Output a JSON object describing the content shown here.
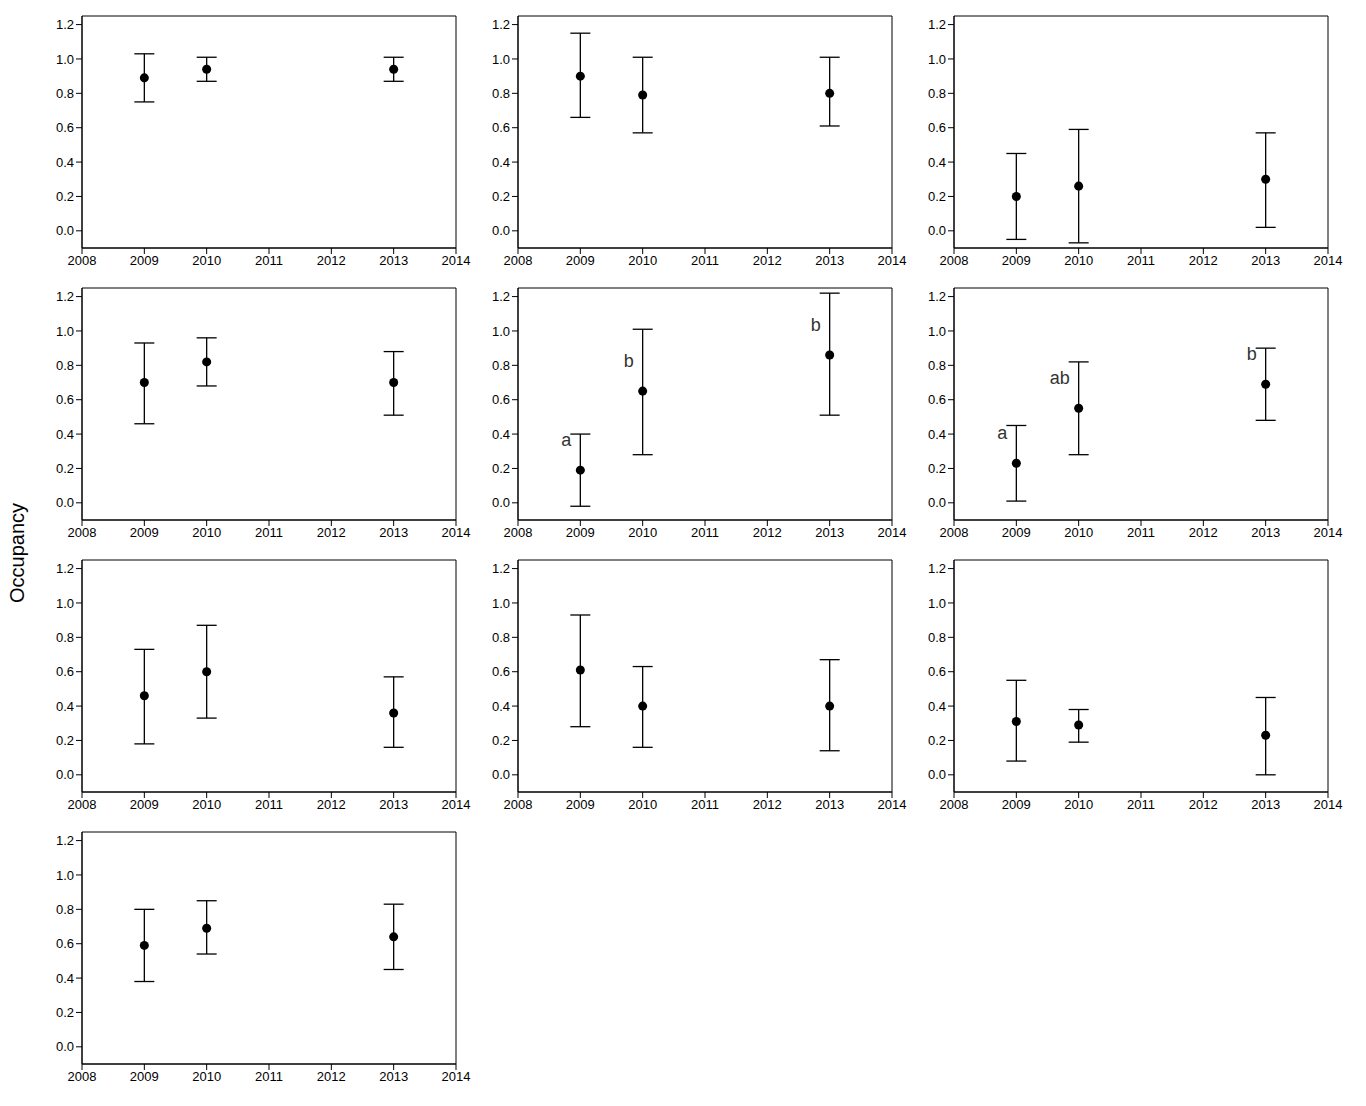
{
  "y_label": "Occupancy",
  "chart_data": [
    {
      "type": "scatter",
      "x": [
        2009,
        2010,
        2013
      ],
      "values": [
        0.89,
        0.94,
        0.94
      ],
      "ci_low": [
        0.75,
        0.87,
        0.87
      ],
      "ci_high": [
        1.03,
        1.01,
        1.01
      ],
      "xlim": [
        2008,
        2014
      ],
      "xticks": [
        2008,
        2009,
        2010,
        2011,
        2012,
        2013,
        2014
      ],
      "ylim": [
        -0.1,
        1.25
      ],
      "yticks": [
        {
          "value": 0,
          "label": "0.0"
        },
        {
          "value": 0.2,
          "label": "0.2"
        },
        {
          "value": 0.4,
          "label": "0.4"
        },
        {
          "value": 0.6,
          "label": "0.6"
        },
        {
          "value": 0.8,
          "label": "0.8"
        },
        {
          "value": 1,
          "label": "1.0"
        },
        {
          "value": 1.2,
          "label": "1.2"
        }
      ],
      "color": "#000000",
      "marker": "circle",
      "grid": false
    },
    {
      "type": "scatter",
      "x": [
        2009,
        2010,
        2013
      ],
      "values": [
        0.9,
        0.79,
        0.8
      ],
      "ci_low": [
        0.66,
        0.57,
        0.61
      ],
      "ci_high": [
        1.15,
        1.01,
        1.01
      ],
      "xlim": [
        2008,
        2014
      ],
      "xticks": [
        2008,
        2009,
        2010,
        2011,
        2012,
        2013,
        2014
      ],
      "ylim": [
        -0.1,
        1.25
      ],
      "yticks": [
        {
          "value": 0,
          "label": "0.0"
        },
        {
          "value": 0.2,
          "label": "0.2"
        },
        {
          "value": 0.4,
          "label": "0.4"
        },
        {
          "value": 0.6,
          "label": "0.6"
        },
        {
          "value": 0.8,
          "label": "0.8"
        },
        {
          "value": 1,
          "label": "1.0"
        },
        {
          "value": 1.2,
          "label": "1.2"
        }
      ],
      "color": "#000000",
      "marker": "circle",
      "grid": false
    },
    {
      "type": "scatter",
      "x": [
        2009,
        2010,
        2013
      ],
      "values": [
        0.2,
        0.26,
        0.3
      ],
      "ci_low": [
        -0.05,
        -0.07,
        0.02
      ],
      "ci_high": [
        0.45,
        0.59,
        0.57
      ],
      "xlim": [
        2008,
        2014
      ],
      "xticks": [
        2008,
        2009,
        2010,
        2011,
        2012,
        2013,
        2014
      ],
      "ylim": [
        -0.1,
        1.25
      ],
      "yticks": [
        {
          "value": 0,
          "label": "0.0"
        },
        {
          "value": 0.2,
          "label": "0.2"
        },
        {
          "value": 0.4,
          "label": "0.4"
        },
        {
          "value": 0.6,
          "label": "0.6"
        },
        {
          "value": 0.8,
          "label": "0.8"
        },
        {
          "value": 1,
          "label": "1.0"
        },
        {
          "value": 1.2,
          "label": "1.2"
        }
      ],
      "color": "#000000",
      "marker": "circle",
      "grid": false
    },
    {
      "type": "scatter",
      "x": [
        2009,
        2010,
        2013
      ],
      "values": [
        0.7,
        0.82,
        0.7
      ],
      "ci_low": [
        0.46,
        0.68,
        0.51
      ],
      "ci_high": [
        0.93,
        0.96,
        0.88
      ],
      "xlim": [
        2008,
        2014
      ],
      "xticks": [
        2008,
        2009,
        2010,
        2011,
        2012,
        2013,
        2014
      ],
      "ylim": [
        -0.1,
        1.25
      ],
      "yticks": [
        {
          "value": 0,
          "label": "0.0"
        },
        {
          "value": 0.2,
          "label": "0.2"
        },
        {
          "value": 0.4,
          "label": "0.4"
        },
        {
          "value": 0.6,
          "label": "0.6"
        },
        {
          "value": 0.8,
          "label": "0.8"
        },
        {
          "value": 1,
          "label": "1.0"
        },
        {
          "value": 1.2,
          "label": "1.2"
        }
      ],
      "color": "#000000",
      "marker": "circle",
      "grid": false
    },
    {
      "type": "scatter",
      "x": [
        2009,
        2010,
        2013
      ],
      "values": [
        0.19,
        0.65,
        0.86
      ],
      "ci_low": [
        -0.02,
        0.28,
        0.51
      ],
      "ci_high": [
        0.4,
        1.01,
        1.22
      ],
      "point_labels": [
        "a",
        "b",
        "b"
      ],
      "xlim": [
        2008,
        2014
      ],
      "xticks": [
        2008,
        2009,
        2010,
        2011,
        2012,
        2013,
        2014
      ],
      "ylim": [
        -0.1,
        1.25
      ],
      "yticks": [
        {
          "value": 0,
          "label": "0.0"
        },
        {
          "value": 0.2,
          "label": "0.2"
        },
        {
          "value": 0.4,
          "label": "0.4"
        },
        {
          "value": 0.6,
          "label": "0.6"
        },
        {
          "value": 0.8,
          "label": "0.8"
        },
        {
          "value": 1,
          "label": "1.0"
        },
        {
          "value": 1.2,
          "label": "1.2"
        }
      ],
      "color": "#000000",
      "marker": "circle",
      "grid": false
    },
    {
      "type": "scatter",
      "x": [
        2009,
        2010,
        2013
      ],
      "values": [
        0.23,
        0.55,
        0.69
      ],
      "ci_low": [
        0.01,
        0.28,
        0.48
      ],
      "ci_high": [
        0.45,
        0.82,
        0.9
      ],
      "point_labels": [
        "a",
        "ab",
        "b"
      ],
      "xlim": [
        2008,
        2014
      ],
      "xticks": [
        2008,
        2009,
        2010,
        2011,
        2012,
        2013,
        2014
      ],
      "ylim": [
        -0.1,
        1.25
      ],
      "yticks": [
        {
          "value": 0,
          "label": "0.0"
        },
        {
          "value": 0.2,
          "label": "0.2"
        },
        {
          "value": 0.4,
          "label": "0.4"
        },
        {
          "value": 0.6,
          "label": "0.6"
        },
        {
          "value": 0.8,
          "label": "0.8"
        },
        {
          "value": 1,
          "label": "1.0"
        },
        {
          "value": 1.2,
          "label": "1.2"
        }
      ],
      "color": "#000000",
      "marker": "circle",
      "grid": false
    },
    {
      "type": "scatter",
      "x": [
        2009,
        2010,
        2013
      ],
      "values": [
        0.46,
        0.6,
        0.36
      ],
      "ci_low": [
        0.18,
        0.33,
        0.16
      ],
      "ci_high": [
        0.73,
        0.87,
        0.57
      ],
      "xlim": [
        2008,
        2014
      ],
      "xticks": [
        2008,
        2009,
        2010,
        2011,
        2012,
        2013,
        2014
      ],
      "ylim": [
        -0.1,
        1.25
      ],
      "yticks": [
        {
          "value": 0,
          "label": "0.0"
        },
        {
          "value": 0.2,
          "label": "0.2"
        },
        {
          "value": 0.4,
          "label": "0.4"
        },
        {
          "value": 0.6,
          "label": "0.6"
        },
        {
          "value": 0.8,
          "label": "0.8"
        },
        {
          "value": 1,
          "label": "1.0"
        },
        {
          "value": 1.2,
          "label": "1.2"
        }
      ],
      "color": "#000000",
      "marker": "circle",
      "grid": false
    },
    {
      "type": "scatter",
      "x": [
        2009,
        2010,
        2013
      ],
      "values": [
        0.61,
        0.4,
        0.4
      ],
      "ci_low": [
        0.28,
        0.16,
        0.14
      ],
      "ci_high": [
        0.93,
        0.63,
        0.67
      ],
      "xlim": [
        2008,
        2014
      ],
      "xticks": [
        2008,
        2009,
        2010,
        2011,
        2012,
        2013,
        2014
      ],
      "ylim": [
        -0.1,
        1.25
      ],
      "yticks": [
        {
          "value": 0,
          "label": "0.0"
        },
        {
          "value": 0.2,
          "label": "0.2"
        },
        {
          "value": 0.4,
          "label": "0.4"
        },
        {
          "value": 0.6,
          "label": "0.6"
        },
        {
          "value": 0.8,
          "label": "0.8"
        },
        {
          "value": 1,
          "label": "1.0"
        },
        {
          "value": 1.2,
          "label": "1.2"
        }
      ],
      "color": "#000000",
      "marker": "circle",
      "grid": false
    },
    {
      "type": "scatter",
      "x": [
        2009,
        2010,
        2013
      ],
      "values": [
        0.31,
        0.29,
        0.23
      ],
      "ci_low": [
        0.08,
        0.19,
        0.0
      ],
      "ci_high": [
        0.55,
        0.38,
        0.45
      ],
      "xlim": [
        2008,
        2014
      ],
      "xticks": [
        2008,
        2009,
        2010,
        2011,
        2012,
        2013,
        2014
      ],
      "ylim": [
        -0.1,
        1.25
      ],
      "yticks": [
        {
          "value": 0,
          "label": "0.0"
        },
        {
          "value": 0.2,
          "label": "0.2"
        },
        {
          "value": 0.4,
          "label": "0.4"
        },
        {
          "value": 0.6,
          "label": "0.6"
        },
        {
          "value": 0.8,
          "label": "0.8"
        },
        {
          "value": 1,
          "label": "1.0"
        },
        {
          "value": 1.2,
          "label": "1.2"
        }
      ],
      "color": "#000000",
      "marker": "circle",
      "grid": false
    },
    {
      "type": "scatter",
      "x": [
        2009,
        2010,
        2013
      ],
      "values": [
        0.59,
        0.69,
        0.64
      ],
      "ci_low": [
        0.38,
        0.54,
        0.45
      ],
      "ci_high": [
        0.8,
        0.85,
        0.83
      ],
      "xlim": [
        2008,
        2014
      ],
      "xticks": [
        2008,
        2009,
        2010,
        2011,
        2012,
        2013,
        2014
      ],
      "ylim": [
        -0.1,
        1.25
      ],
      "yticks": [
        {
          "value": 0,
          "label": "0.0"
        },
        {
          "value": 0.2,
          "label": "0.2"
        },
        {
          "value": 0.4,
          "label": "0.4"
        },
        {
          "value": 0.6,
          "label": "0.6"
        },
        {
          "value": 0.8,
          "label": "0.8"
        },
        {
          "value": 1,
          "label": "1.0"
        },
        {
          "value": 1.2,
          "label": "1.2"
        }
      ],
      "color": "#000000",
      "marker": "circle",
      "grid": false
    }
  ]
}
